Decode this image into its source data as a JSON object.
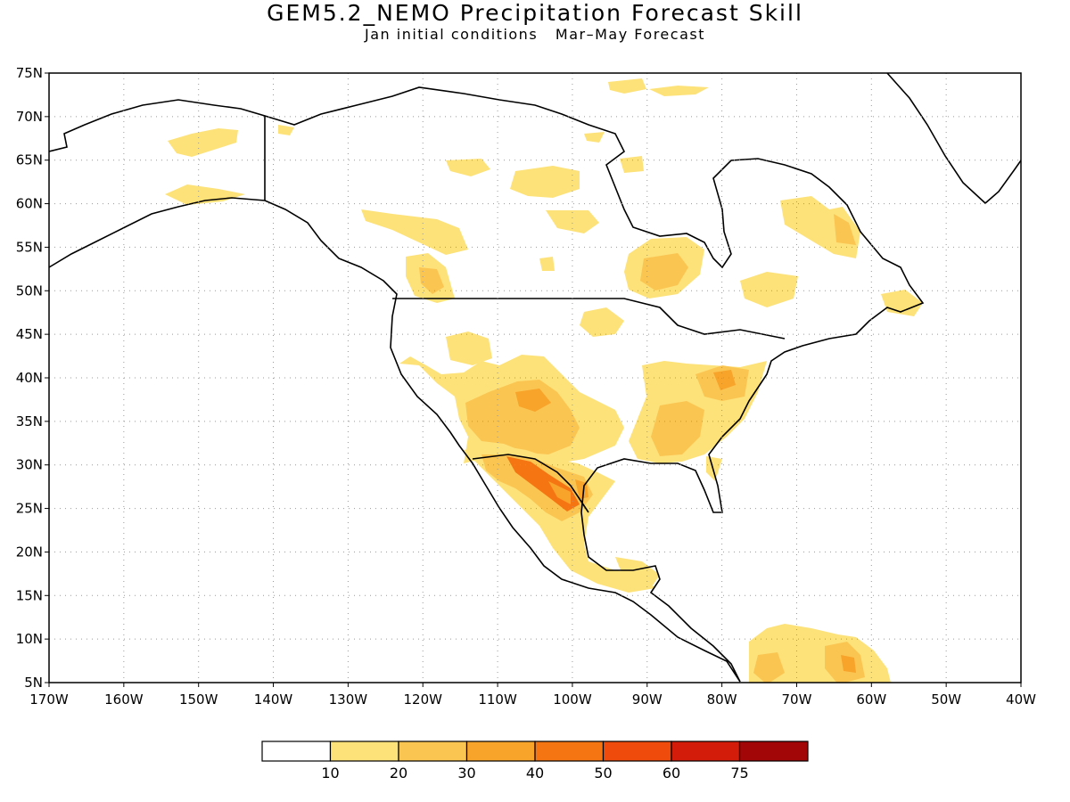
{
  "title": "GEM5.2_NEMO Precipitation Forecast Skill",
  "subtitle_left": "Jan initial conditions",
  "subtitle_right": "Mar–May Forecast",
  "map": {
    "lon_range": [
      -170,
      -40
    ],
    "lat_range": [
      5,
      75
    ],
    "lat_labels": [
      "75N",
      "70N",
      "65N",
      "60N",
      "55N",
      "50N",
      "45N",
      "40N",
      "35N",
      "30N",
      "25N",
      "20N",
      "15N",
      "10N",
      "5N"
    ],
    "lon_labels": [
      "170W",
      "160W",
      "150W",
      "140W",
      "130W",
      "120W",
      "110W",
      "100W",
      "90W",
      "80W",
      "70W",
      "60W",
      "50W",
      "40W"
    ],
    "grid": "dotted"
  },
  "colorbar": {
    "labels": [
      "10",
      "20",
      "30",
      "40",
      "50",
      "60",
      "75"
    ],
    "colors": [
      "#ffffff",
      "#fde27a",
      "#fbc552",
      "#f8a32a",
      "#f57513",
      "#ef4b0c",
      "#d41c0b",
      "#a20606"
    ]
  }
}
